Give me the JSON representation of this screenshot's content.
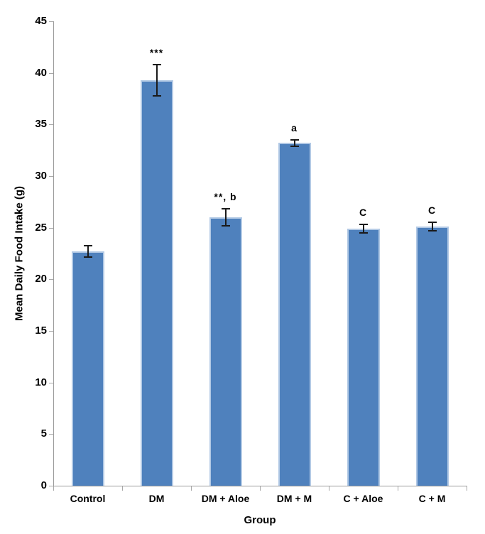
{
  "figure": {
    "background_color": "#ffffff"
  },
  "chart_data": {
    "type": "bar",
    "title": "",
    "xlabel": "Group",
    "ylabel": "Mean Daily Food Intake (g)",
    "categories": [
      "Control",
      "DM",
      "DM + Aloe",
      "DM + M",
      "C + Aloe",
      "C + M"
    ],
    "values": [
      22.7,
      39.3,
      26.0,
      33.2,
      24.9,
      25.1
    ],
    "error_bars": [
      0.6,
      1.6,
      0.9,
      0.4,
      0.5,
      0.5
    ],
    "annotations": [
      "",
      "***",
      "**, b",
      "a",
      "C",
      "C"
    ],
    "ylim": [
      0,
      45
    ],
    "ytick_step": 5,
    "ytick_labels": [
      "0",
      "5",
      "10",
      "15",
      "20",
      "25",
      "30",
      "35",
      "40",
      "45"
    ],
    "grid": false,
    "legend": "none",
    "bar_color": "#4f81bd",
    "bar_border_color": "#b2c9e5",
    "error_bar_color": "#1a1a1a",
    "axis_color": "#9b9b9b",
    "text_color": "#000000"
  }
}
